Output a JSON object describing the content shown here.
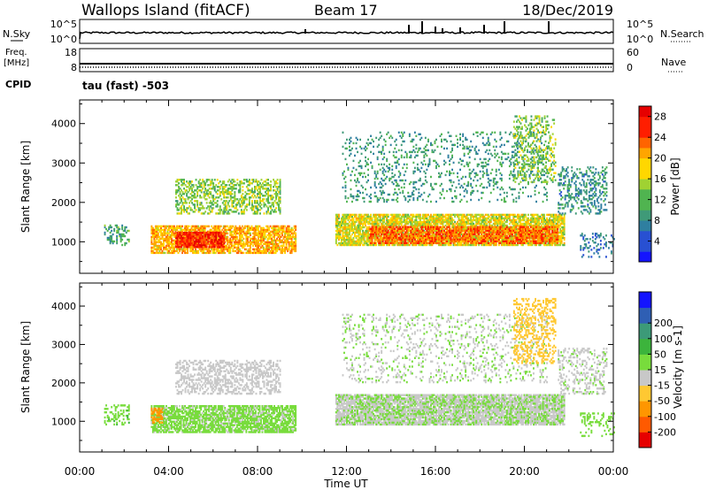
{
  "header": {
    "title": "Wallops Island (fitACF)",
    "beam": "Beam 17",
    "date": "18/Dec/2019"
  },
  "status_panels": {
    "nsky_label": "N.Sky",
    "nsearch_label": "N.Search",
    "freq_label_1": "Freq.",
    "freq_label_2": "[MHz]",
    "nave_label": "Nave",
    "cpid_label": "CPID",
    "cpid_value": "tau (fast) -503",
    "noise_left_ticks": [
      "10^5",
      "10^0"
    ],
    "noise_right_ticks": [
      "10^5",
      "10^0"
    ],
    "freq_left_ticks": [
      "18",
      "8"
    ],
    "freq_right_ticks": [
      "60",
      "0"
    ]
  },
  "colors": {
    "power_scale": [
      "#1414ff",
      "#2850d2",
      "#2f7fa0",
      "#3f9a78",
      "#50b450",
      "#a0d232",
      "#ffd700",
      "#ffa500",
      "#ff6400",
      "#ff1e00",
      "#e60000"
    ],
    "velocity_scale": [
      "#e60000",
      "#ff5a00",
      "#ff9600",
      "#ffc832",
      "#c8c8c8",
      "#78dc3c",
      "#3cb43c",
      "#3c9a78",
      "#2f5fb4",
      "#1414ff"
    ]
  },
  "chart_data": [
    {
      "type": "heatmap",
      "panel": "power",
      "ylabel": "Slant Range [km]",
      "y_ticks": [
        1000,
        2000,
        3000,
        4000
      ],
      "ylim": [
        200,
        4600
      ],
      "x_ticks": [
        "00:00",
        "04:00",
        "08:00",
        "12:00",
        "16:00",
        "20:00",
        "00:00"
      ],
      "xlim": [
        0,
        24
      ],
      "colorbar_label": "Power [dB]",
      "colorbar_ticks": [
        4,
        8,
        12,
        16,
        20,
        24,
        28
      ],
      "colorbar_range": [
        0,
        30
      ],
      "regions": [
        {
          "t0": 1.1,
          "t1": 2.2,
          "r0": 900,
          "r1": 1400,
          "v": 10,
          "d": 0.35
        },
        {
          "t0": 3.2,
          "t1": 9.7,
          "r0": 700,
          "r1": 1400,
          "v": 20,
          "d": 0.75
        },
        {
          "t0": 4.3,
          "t1": 6.5,
          "r0": 850,
          "r1": 1250,
          "v": 27,
          "d": 0.85
        },
        {
          "t0": 4.3,
          "t1": 9.0,
          "r0": 1700,
          "r1": 2600,
          "v": 14,
          "d": 0.45
        },
        {
          "t0": 11.5,
          "t1": 21.8,
          "r0": 900,
          "r1": 1700,
          "v": 17,
          "d": 0.8
        },
        {
          "t0": 13.0,
          "t1": 21.5,
          "r0": 950,
          "r1": 1400,
          "v": 24,
          "d": 0.7
        },
        {
          "t0": 11.8,
          "t1": 21.0,
          "r0": 2000,
          "r1": 3800,
          "v": 9,
          "d": 0.15
        },
        {
          "t0": 19.5,
          "t1": 21.4,
          "r0": 2500,
          "r1": 4200,
          "v": 14,
          "d": 0.3
        },
        {
          "t0": 21.5,
          "t1": 23.7,
          "r0": 1700,
          "r1": 2900,
          "v": 8,
          "d": 0.3
        },
        {
          "t0": 22.5,
          "t1": 24.0,
          "r0": 600,
          "r1": 1200,
          "v": 6,
          "d": 0.2
        }
      ]
    },
    {
      "type": "heatmap",
      "panel": "velocity",
      "ylabel": "Slant Range [km]",
      "y_ticks": [
        1000,
        2000,
        3000,
        4000
      ],
      "ylim": [
        200,
        4600
      ],
      "x_ticks": [
        "00:00",
        "04:00",
        "08:00",
        "12:00",
        "16:00",
        "20:00",
        "00:00"
      ],
      "xlim": [
        0,
        24
      ],
      "xlabel": "Time UT",
      "colorbar_label": "Velocity [m s-1]",
      "colorbar_ticks": [
        "-200",
        "-100",
        "-50",
        "-15",
        "15",
        "50",
        "100",
        "200"
      ],
      "colorbar_range": [
        -250,
        250
      ],
      "regions": [
        {
          "t0": 1.1,
          "t1": 2.2,
          "r0": 900,
          "r1": 1400,
          "v": 40,
          "d": 0.35
        },
        {
          "t0": 3.2,
          "t1": 9.7,
          "r0": 700,
          "r1": 1400,
          "v": 25,
          "d": 0.75
        },
        {
          "t0": 3.2,
          "t1": 3.7,
          "r0": 950,
          "r1": 1350,
          "v": -60,
          "d": 0.7
        },
        {
          "t0": 4.3,
          "t1": 9.0,
          "r0": 1700,
          "r1": 2600,
          "v": 0,
          "d": 0.45
        },
        {
          "t0": 11.5,
          "t1": 21.8,
          "r0": 900,
          "r1": 1700,
          "v": 2,
          "d": 0.8
        },
        {
          "t0": 11.5,
          "t1": 21.8,
          "r0": 900,
          "r1": 1700,
          "v": 25,
          "d": 0.25
        },
        {
          "t0": 11.8,
          "t1": 21.0,
          "r0": 2000,
          "r1": 3800,
          "v": 10,
          "d": 0.15
        },
        {
          "t0": 19.5,
          "t1": 21.4,
          "r0": 2500,
          "r1": 4200,
          "v": -30,
          "d": 0.3
        },
        {
          "t0": 21.5,
          "t1": 23.7,
          "r0": 1700,
          "r1": 2900,
          "v": 5,
          "d": 0.3
        },
        {
          "t0": 22.5,
          "t1": 24.0,
          "r0": 600,
          "r1": 1200,
          "v": 30,
          "d": 0.2
        }
      ]
    }
  ]
}
